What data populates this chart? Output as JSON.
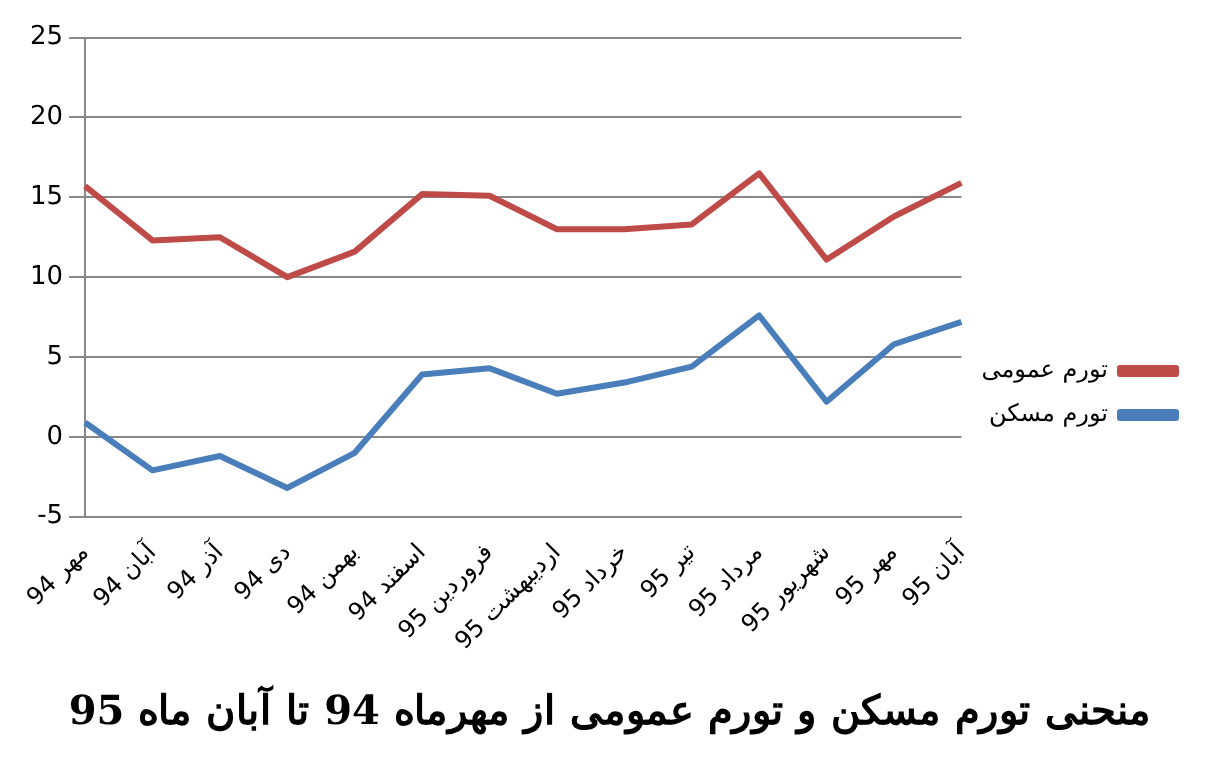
{
  "chart_data": {
    "type": "line",
    "title": "منحنی تورم مسکن و تورم عمومی از مهرماه 94 تا آبان ماه 95",
    "categories": [
      "مهر 94",
      "آبان 94",
      "آذر 94",
      "دی 94",
      "بهمن 94",
      "اسفند 94",
      "فروردین 95",
      "اردیبهشت 95",
      "خرداد 95",
      "تیر 95",
      "مرداد 95",
      "شهریور 95",
      "مهر 95",
      "آبان 95"
    ],
    "series": [
      {
        "name": "تورم عمومی",
        "color": "#be4b48",
        "values": [
          15.7,
          12.3,
          12.5,
          10.0,
          11.6,
          15.2,
          15.1,
          13.0,
          13.0,
          13.3,
          16.5,
          11.1,
          13.8,
          15.9
        ]
      },
      {
        "name": "تورم مسکن",
        "color": "#4a7ebb",
        "values": [
          0.9,
          -2.1,
          -1.2,
          -3.2,
          -1.0,
          3.9,
          4.3,
          2.7,
          3.4,
          4.4,
          7.6,
          2.2,
          5.8,
          7.2
        ]
      }
    ],
    "ylim": [
      -5,
      25
    ],
    "yticks": [
      -5,
      0,
      5,
      10,
      15,
      20,
      25
    ],
    "grid": "y",
    "legend": "right",
    "marker": "none",
    "line_style": "solid"
  }
}
